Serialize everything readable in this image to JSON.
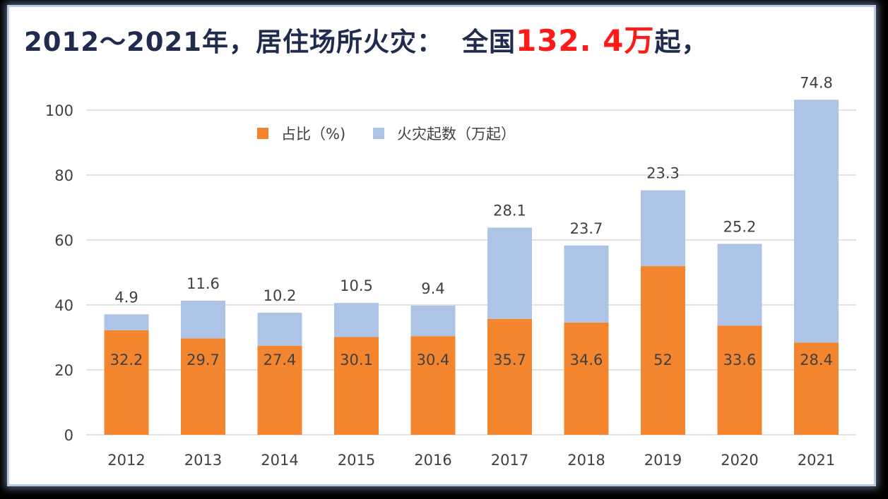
{
  "title": {
    "prefix": "2012～2021年，居住场所火灾：",
    "middle": "全国",
    "highlight": "132. 4万",
    "suffix": "起，"
  },
  "colors": {
    "ratio": "#f4852f",
    "fires": "#adc4e6",
    "title": "#1f2c4d",
    "highlight": "#ff1a1a"
  },
  "chart_data": {
    "type": "bar",
    "stacked": true,
    "categories": [
      "2012",
      "2013",
      "2014",
      "2015",
      "2016",
      "2017",
      "2018",
      "2019",
      "2020",
      "2021"
    ],
    "series": [
      {
        "name": "占比（%)",
        "values": [
          32.2,
          29.7,
          27.4,
          30.1,
          30.4,
          35.7,
          34.6,
          52,
          33.6,
          28.4
        ]
      },
      {
        "name": "火灾起数（万起）",
        "values": [
          4.9,
          11.6,
          10.2,
          10.5,
          9.4,
          28.1,
          23.7,
          23.3,
          25.2,
          74.8
        ]
      }
    ],
    "ylim": [
      0,
      100
    ],
    "yticks": [
      0,
      20,
      40,
      60,
      80,
      100
    ],
    "grid": true,
    "legend": "top-center"
  }
}
